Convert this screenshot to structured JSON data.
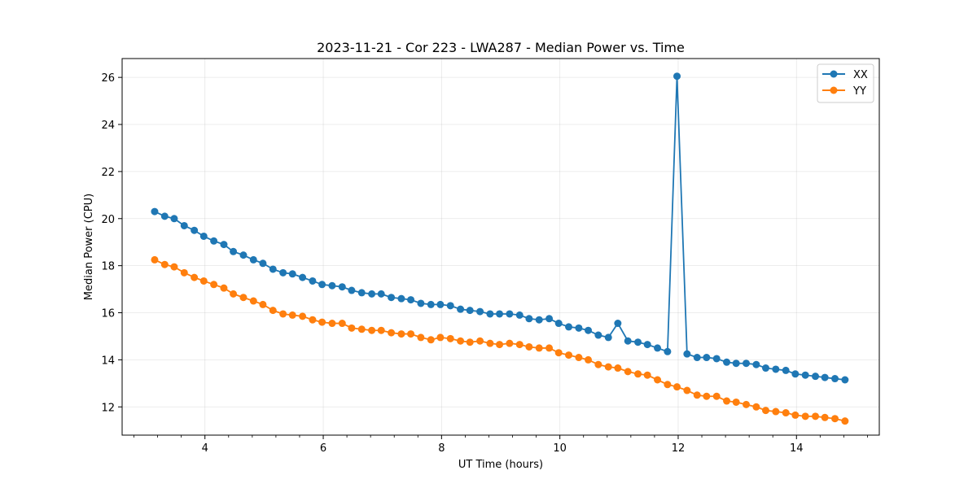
{
  "chart_data": {
    "type": "line",
    "title": "2023-11-21 - Cor 223 - LWA287 - Median Power vs. Time",
    "xlabel": "UT Time (hours)",
    "ylabel": "Median Power (CPU)",
    "xlim": [
      2.6,
      15.4
    ],
    "ylim": [
      10.8,
      26.8
    ],
    "xticks": [
      4,
      6,
      8,
      10,
      12,
      14
    ],
    "yticks": [
      12,
      14,
      16,
      18,
      20,
      22,
      24,
      26
    ],
    "x_minor_step": 0.4,
    "grid": true,
    "legend_position": "top-right",
    "marker": "circle",
    "x": [
      3.15,
      3.32,
      3.48,
      3.65,
      3.82,
      3.98,
      4.15,
      4.32,
      4.48,
      4.65,
      4.82,
      4.98,
      5.15,
      5.32,
      5.48,
      5.65,
      5.82,
      5.98,
      6.15,
      6.32,
      6.48,
      6.65,
      6.82,
      6.98,
      7.15,
      7.32,
      7.48,
      7.65,
      7.82,
      7.98,
      8.15,
      8.32,
      8.48,
      8.65,
      8.82,
      8.98,
      9.15,
      9.32,
      9.48,
      9.65,
      9.82,
      9.98,
      10.15,
      10.32,
      10.48,
      10.65,
      10.82,
      10.98,
      11.15,
      11.32,
      11.48,
      11.65,
      11.82,
      11.98,
      12.15,
      12.32,
      12.48,
      12.65,
      12.82,
      12.98,
      13.15,
      13.32,
      13.48,
      13.65,
      13.82,
      13.98,
      14.15,
      14.32,
      14.48,
      14.65,
      14.82
    ],
    "series": [
      {
        "name": "XX",
        "color": "#1f77b4",
        "values": [
          20.3,
          20.1,
          20.0,
          19.7,
          19.5,
          19.25,
          19.05,
          18.9,
          18.6,
          18.45,
          18.25,
          18.1,
          17.85,
          17.7,
          17.65,
          17.5,
          17.35,
          17.2,
          17.15,
          17.1,
          16.95,
          16.85,
          16.8,
          16.8,
          16.65,
          16.6,
          16.55,
          16.4,
          16.35,
          16.35,
          16.3,
          16.15,
          16.1,
          16.05,
          15.95,
          15.95,
          15.95,
          15.9,
          15.75,
          15.7,
          15.75,
          15.55,
          15.4,
          15.35,
          15.25,
          15.05,
          14.95,
          15.55,
          14.8,
          14.75,
          14.65,
          14.5,
          14.35,
          26.05,
          14.25,
          14.1,
          14.1,
          14.05,
          13.9,
          13.85,
          13.85,
          13.8,
          13.65,
          13.6,
          13.55,
          13.4,
          13.35,
          13.3,
          13.25,
          13.2,
          13.15
        ]
      },
      {
        "name": "YY",
        "color": "#ff7f0e",
        "values": [
          18.25,
          18.05,
          17.95,
          17.7,
          17.5,
          17.35,
          17.2,
          17.05,
          16.8,
          16.65,
          16.5,
          16.35,
          16.1,
          15.95,
          15.9,
          15.85,
          15.7,
          15.6,
          15.55,
          15.55,
          15.35,
          15.3,
          15.25,
          15.25,
          15.15,
          15.1,
          15.1,
          14.95,
          14.85,
          14.95,
          14.9,
          14.8,
          14.75,
          14.8,
          14.7,
          14.65,
          14.7,
          14.65,
          14.55,
          14.5,
          14.5,
          14.3,
          14.2,
          14.1,
          14.0,
          13.8,
          13.7,
          13.65,
          13.5,
          13.4,
          13.35,
          13.15,
          12.95,
          12.85,
          12.7,
          12.5,
          12.45,
          12.45,
          12.25,
          12.2,
          12.1,
          12.0,
          11.85,
          11.8,
          11.75,
          11.65,
          11.6,
          11.6,
          11.55,
          11.5,
          11.4
        ]
      }
    ]
  }
}
